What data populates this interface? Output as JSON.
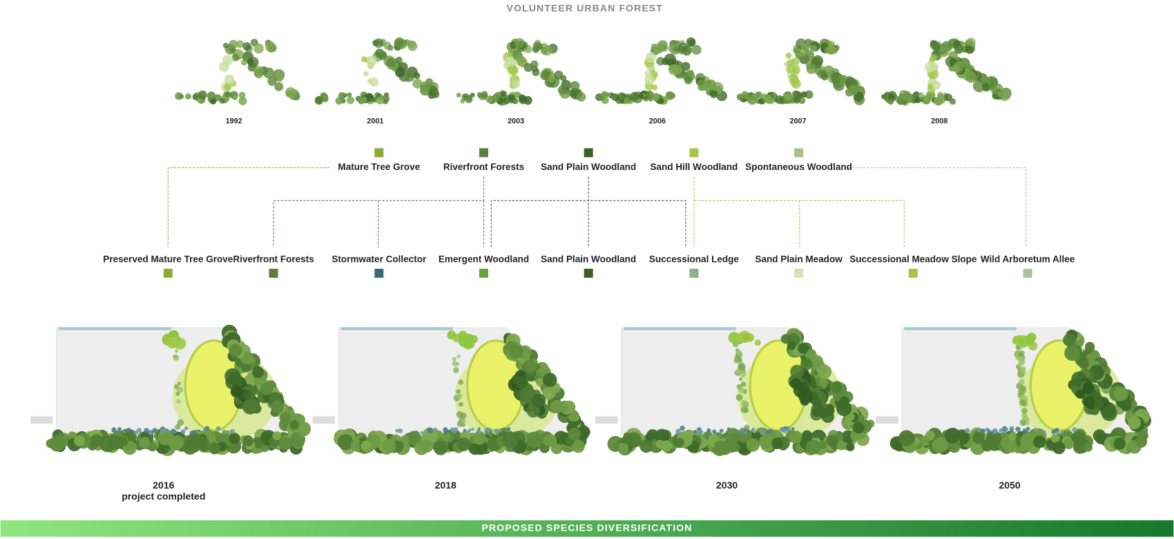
{
  "header": {
    "title": "VOLUNTEER URBAN FOREST"
  },
  "years": [
    "1992",
    "2001",
    "2003",
    "2006",
    "2007",
    "2008"
  ],
  "source_types": [
    {
      "label": "Mature Tree Grove",
      "color": "#8aad3a"
    },
    {
      "label": "Riverfront Forests",
      "color": "#5d7d3a"
    },
    {
      "label": "Sand Plain Woodland",
      "color": "#3f5f27"
    },
    {
      "label": "Sand Hill Woodland",
      "color": "#a4c74a"
    },
    {
      "label": "Spontaneous Woodland",
      "color": "#a8c08e"
    }
  ],
  "proposed_types": [
    {
      "label": "Preserved Mature Tree Grove",
      "color": "#8aad3a"
    },
    {
      "label": "Riverfront Forests",
      "color": "#5d7d3a"
    },
    {
      "label": "Stormwater Collector",
      "color": "#3b6b78"
    },
    {
      "label": "Emergent Woodland",
      "color": "#6aa23e"
    },
    {
      "label": "Sand Plain Woodland",
      "color": "#3f5f27"
    },
    {
      "label": "Successional Ledge",
      "color": "#8fae8c"
    },
    {
      "label": "Sand Plain Meadow",
      "color": "#d3e5b4"
    },
    {
      "label": "Successional Meadow Slope",
      "color": "#a4c74a"
    },
    {
      "label": "Wild Arboretum Allee",
      "color": "#a8c29a"
    }
  ],
  "plans": [
    {
      "label": "2016",
      "note": "project completed"
    },
    {
      "label": "2018"
    },
    {
      "label": "2030"
    },
    {
      "label": "2050"
    }
  ],
  "footer": {
    "title": "PROPOSED SPECIES DIVERSIFICATION"
  }
}
